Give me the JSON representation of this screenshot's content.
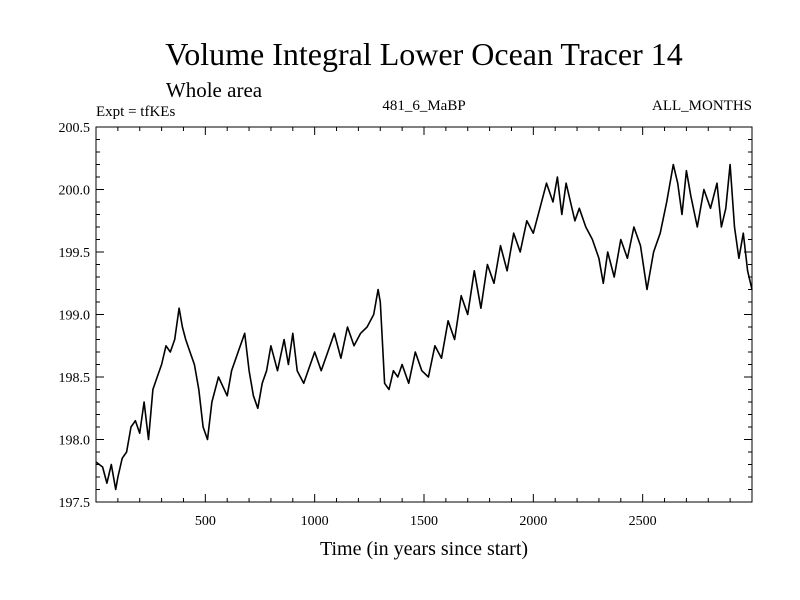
{
  "chart_data": {
    "type": "line",
    "title": "Volume Integral Lower Ocean Tracer 14",
    "subtitle": "Whole area",
    "experiment_label": "Expt = tfKEs",
    "center_label": "481_6_MaBP",
    "right_label": "ALL_MONTHS",
    "xlabel": "Time (in years since start)",
    "ylabel": "",
    "xlim": [
      0,
      3000
    ],
    "ylim": [
      197.5,
      200.5
    ],
    "x_ticks": [
      500,
      1000,
      1500,
      2000,
      2500
    ],
    "x_tick_labels": [
      "500",
      "1000",
      "1500",
      "2000",
      "2500"
    ],
    "y_ticks": [
      197.5,
      198.0,
      198.5,
      199.0,
      199.5,
      200.0,
      200.5
    ],
    "y_tick_labels": [
      "197.5",
      "198.0",
      "198.5",
      "199.0",
      "199.5",
      "200.0",
      "200.5"
    ],
    "grid": false,
    "line_color": "#000000",
    "series": [
      {
        "x": [
          0,
          30,
          50,
          70,
          90,
          100,
          120,
          140,
          160,
          180,
          200,
          220,
          240,
          260,
          280,
          300,
          320,
          340,
          360,
          380,
          395,
          410,
          430,
          450,
          470,
          490,
          510,
          530,
          560,
          600,
          620,
          650,
          680,
          700,
          720,
          740,
          760,
          780,
          800,
          830,
          860,
          880,
          900,
          920,
          950,
          980,
          1000,
          1030,
          1060,
          1090,
          1120,
          1150,
          1180,
          1210,
          1240,
          1270,
          1290,
          1300,
          1320,
          1340,
          1360,
          1380,
          1400,
          1430,
          1460,
          1490,
          1520,
          1550,
          1580,
          1610,
          1640,
          1670,
          1700,
          1730,
          1760,
          1790,
          1820,
          1850,
          1880,
          1910,
          1940,
          1970,
          2000,
          2030,
          2060,
          2090,
          2110,
          2130,
          2150,
          2170,
          2190,
          2210,
          2240,
          2270,
          2300,
          2320,
          2340,
          2370,
          2400,
          2430,
          2460,
          2490,
          2520,
          2550,
          2580,
          2610,
          2640,
          2660,
          2680,
          2700,
          2720,
          2750,
          2780,
          2810,
          2840,
          2860,
          2880,
          2900,
          2920,
          2940,
          2960,
          2980,
          3000
        ],
        "y": [
          197.82,
          197.78,
          197.65,
          197.8,
          197.6,
          197.7,
          197.85,
          197.9,
          198.1,
          198.15,
          198.05,
          198.3,
          198.0,
          198.4,
          198.5,
          198.6,
          198.75,
          198.7,
          198.8,
          199.05,
          198.9,
          198.8,
          198.7,
          198.6,
          198.4,
          198.1,
          198.0,
          198.3,
          198.5,
          198.35,
          198.55,
          198.7,
          198.85,
          198.55,
          198.35,
          198.25,
          198.45,
          198.55,
          198.75,
          198.55,
          198.8,
          198.6,
          198.85,
          198.55,
          198.45,
          198.6,
          198.7,
          198.55,
          198.7,
          198.85,
          198.65,
          198.9,
          198.75,
          198.85,
          198.9,
          199.0,
          199.2,
          199.1,
          198.45,
          198.4,
          198.55,
          198.5,
          198.6,
          198.45,
          198.7,
          198.55,
          198.5,
          198.75,
          198.65,
          198.95,
          198.8,
          199.15,
          199.0,
          199.35,
          199.05,
          199.4,
          199.25,
          199.55,
          199.35,
          199.65,
          199.5,
          199.75,
          199.65,
          199.85,
          200.05,
          199.9,
          200.1,
          199.8,
          200.05,
          199.9,
          199.75,
          199.85,
          199.7,
          199.6,
          199.45,
          199.25,
          199.5,
          199.3,
          199.6,
          199.45,
          199.7,
          199.55,
          199.2,
          199.5,
          199.65,
          199.9,
          200.2,
          200.05,
          199.8,
          200.15,
          199.95,
          199.7,
          200.0,
          199.85,
          200.05,
          199.7,
          199.85,
          200.2,
          199.7,
          199.45,
          199.65,
          199.35,
          199.2
        ]
      }
    ]
  }
}
